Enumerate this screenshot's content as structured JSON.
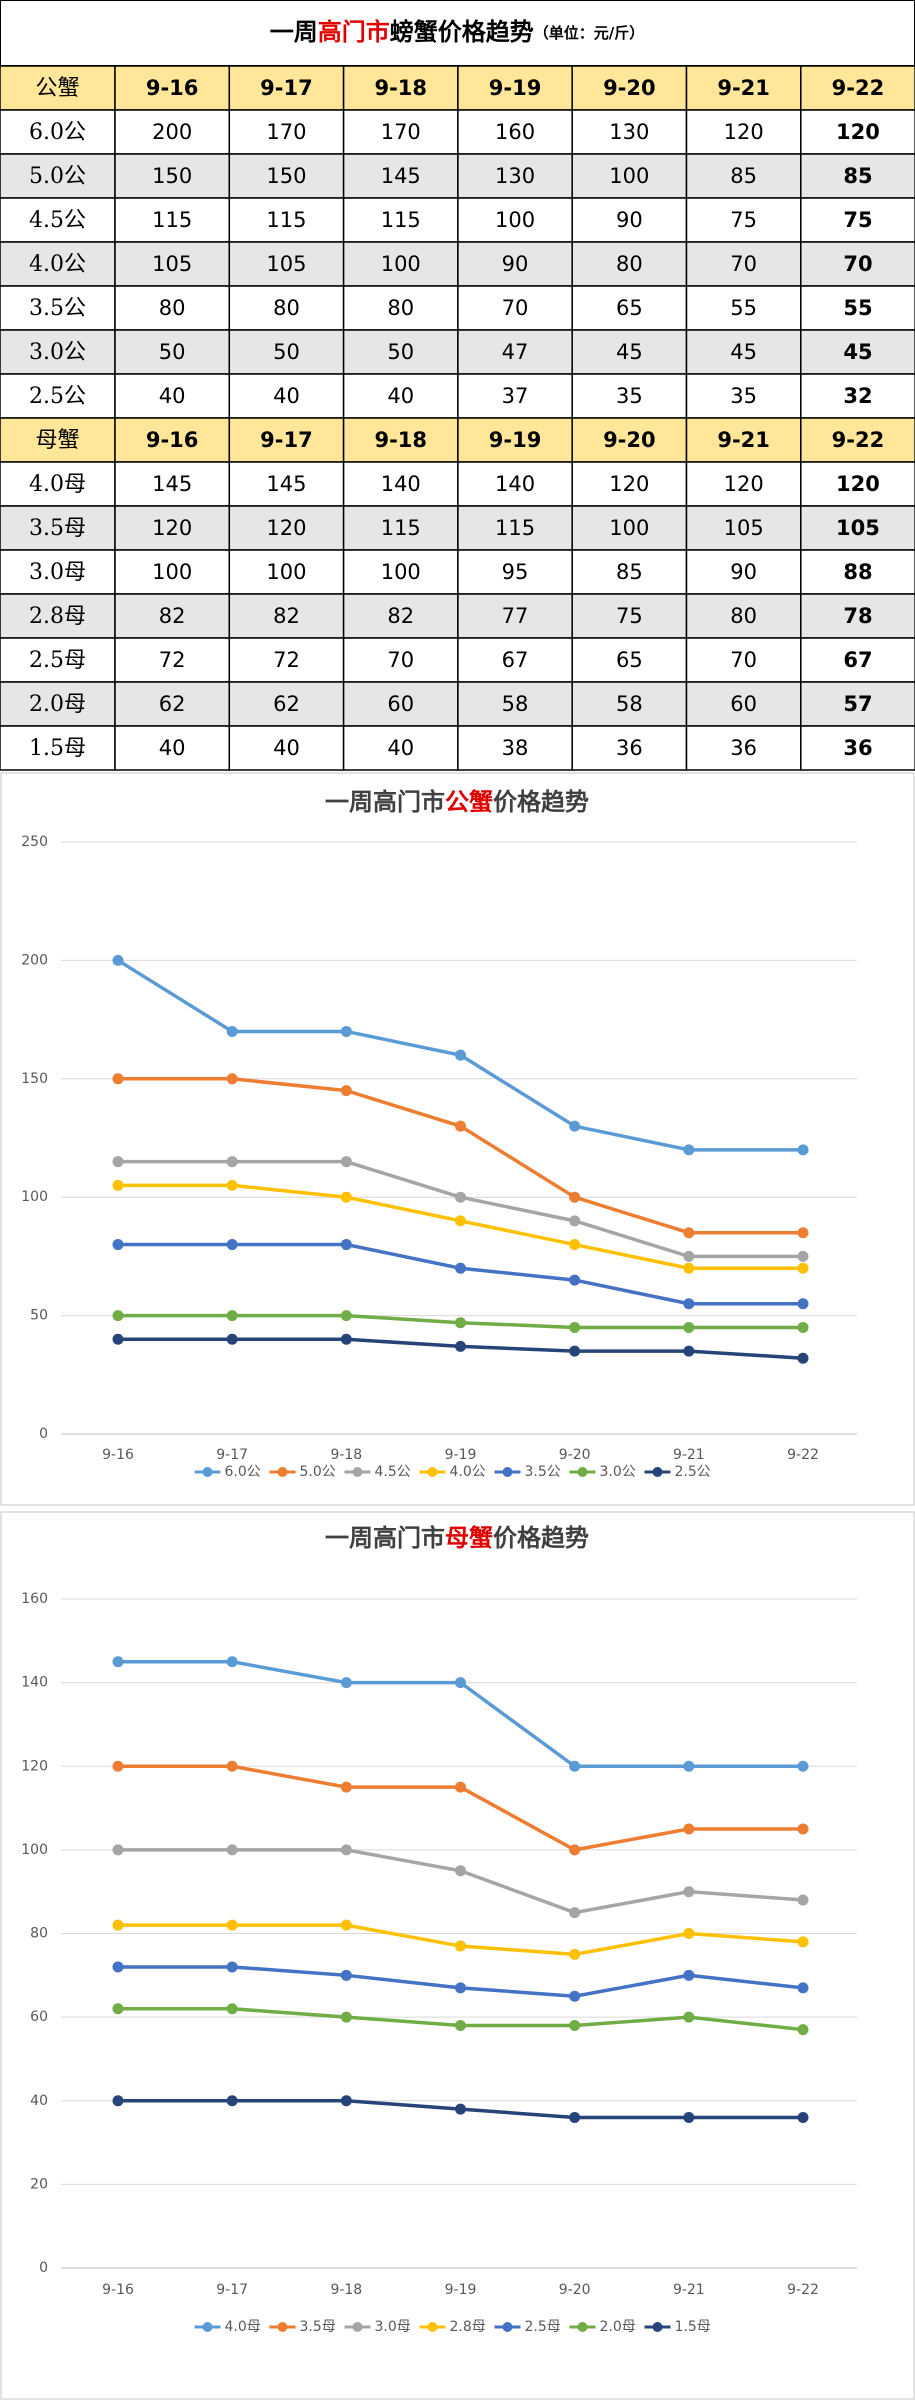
{
  "table": {
    "title_parts": [
      "一周",
      "高门市",
      "螃蟹价格趋势"
    ],
    "unit": "（单位：元/斤）",
    "sections": [
      {
        "header": [
          "公蟹",
          "9-16",
          "9-17",
          "9-18",
          "9-19",
          "9-20",
          "9-21",
          "9-22"
        ],
        "rows": [
          [
            "6.0公",
            200,
            170,
            170,
            160,
            130,
            120,
            120
          ],
          [
            "5.0公",
            150,
            150,
            145,
            130,
            100,
            85,
            85
          ],
          [
            "4.5公",
            115,
            115,
            115,
            100,
            90,
            75,
            75
          ],
          [
            "4.0公",
            105,
            105,
            100,
            90,
            80,
            70,
            70
          ],
          [
            "3.5公",
            80,
            80,
            80,
            70,
            65,
            55,
            55
          ],
          [
            "3.0公",
            50,
            50,
            50,
            47,
            45,
            45,
            45
          ],
          [
            "2.5公",
            40,
            40,
            40,
            37,
            35,
            35,
            32
          ]
        ]
      },
      {
        "header": [
          "母蟹",
          "9-16",
          "9-17",
          "9-18",
          "9-19",
          "9-20",
          "9-21",
          "9-22"
        ],
        "rows": [
          [
            "4.0母",
            145,
            145,
            140,
            140,
            120,
            120,
            120
          ],
          [
            "3.5母",
            120,
            120,
            115,
            115,
            100,
            105,
            105
          ],
          [
            "3.0母",
            100,
            100,
            100,
            95,
            85,
            90,
            88
          ],
          [
            "2.8母",
            82,
            82,
            82,
            77,
            75,
            80,
            78
          ],
          [
            "2.5母",
            72,
            72,
            70,
            67,
            65,
            70,
            67
          ],
          [
            "2.0母",
            62,
            62,
            60,
            58,
            58,
            60,
            57
          ],
          [
            "1.5母",
            40,
            40,
            40,
            38,
            36,
            36,
            36
          ]
        ]
      }
    ]
  },
  "chart_data": [
    {
      "type": "line",
      "title_parts": [
        "一周高门市",
        "公蟹",
        "价格趋势"
      ],
      "categories": [
        "9-16",
        "9-17",
        "9-18",
        "9-19",
        "9-20",
        "9-21",
        "9-22"
      ],
      "series": [
        {
          "name": "6.0公",
          "color": "#5b9bd5",
          "values": [
            200,
            170,
            170,
            160,
            130,
            120,
            120
          ]
        },
        {
          "name": "5.0公",
          "color": "#ed7d31",
          "values": [
            150,
            150,
            145,
            130,
            100,
            85,
            85
          ]
        },
        {
          "name": "4.5公",
          "color": "#a5a5a5",
          "values": [
            115,
            115,
            115,
            100,
            90,
            75,
            75
          ]
        },
        {
          "name": "4.0公",
          "color": "#ffc000",
          "values": [
            105,
            105,
            100,
            90,
            80,
            70,
            70
          ]
        },
        {
          "name": "3.5公",
          "color": "#4472c4",
          "values": [
            80,
            80,
            80,
            70,
            65,
            55,
            55
          ]
        },
        {
          "name": "3.0公",
          "color": "#70ad47",
          "values": [
            50,
            50,
            50,
            47,
            45,
            45,
            45
          ]
        },
        {
          "name": "2.5公",
          "color": "#264478",
          "values": [
            40,
            40,
            40,
            37,
            35,
            35,
            32
          ]
        }
      ],
      "ylim": [
        0,
        250
      ],
      "yticks": [
        0,
        50,
        100,
        150,
        200,
        250
      ],
      "grid": true,
      "legend": "bottom"
    },
    {
      "type": "line",
      "title_parts": [
        "一周高门市",
        "母蟹",
        "价格趋势"
      ],
      "categories": [
        "9-16",
        "9-17",
        "9-18",
        "9-19",
        "9-20",
        "9-21",
        "9-22"
      ],
      "series": [
        {
          "name": "4.0母",
          "color": "#5b9bd5",
          "values": [
            145,
            145,
            140,
            140,
            120,
            120,
            120
          ]
        },
        {
          "name": "3.5母",
          "color": "#ed7d31",
          "values": [
            120,
            120,
            115,
            115,
            100,
            105,
            105
          ]
        },
        {
          "name": "3.0母",
          "color": "#a5a5a5",
          "values": [
            100,
            100,
            100,
            95,
            85,
            90,
            88
          ]
        },
        {
          "name": "2.8母",
          "color": "#ffc000",
          "values": [
            82,
            82,
            82,
            77,
            75,
            80,
            78
          ]
        },
        {
          "name": "2.5母",
          "color": "#4472c4",
          "values": [
            72,
            72,
            70,
            67,
            65,
            70,
            67
          ]
        },
        {
          "name": "2.0母",
          "color": "#70ad47",
          "values": [
            62,
            62,
            60,
            58,
            58,
            60,
            57
          ]
        },
        {
          "name": "1.5母",
          "color": "#264478",
          "values": [
            40,
            40,
            40,
            38,
            36,
            36,
            36
          ]
        }
      ],
      "ylim": [
        0,
        160
      ],
      "yticks": [
        0,
        20,
        40,
        60,
        80,
        100,
        120,
        140,
        160
      ],
      "grid": true,
      "legend": "bottom"
    }
  ]
}
